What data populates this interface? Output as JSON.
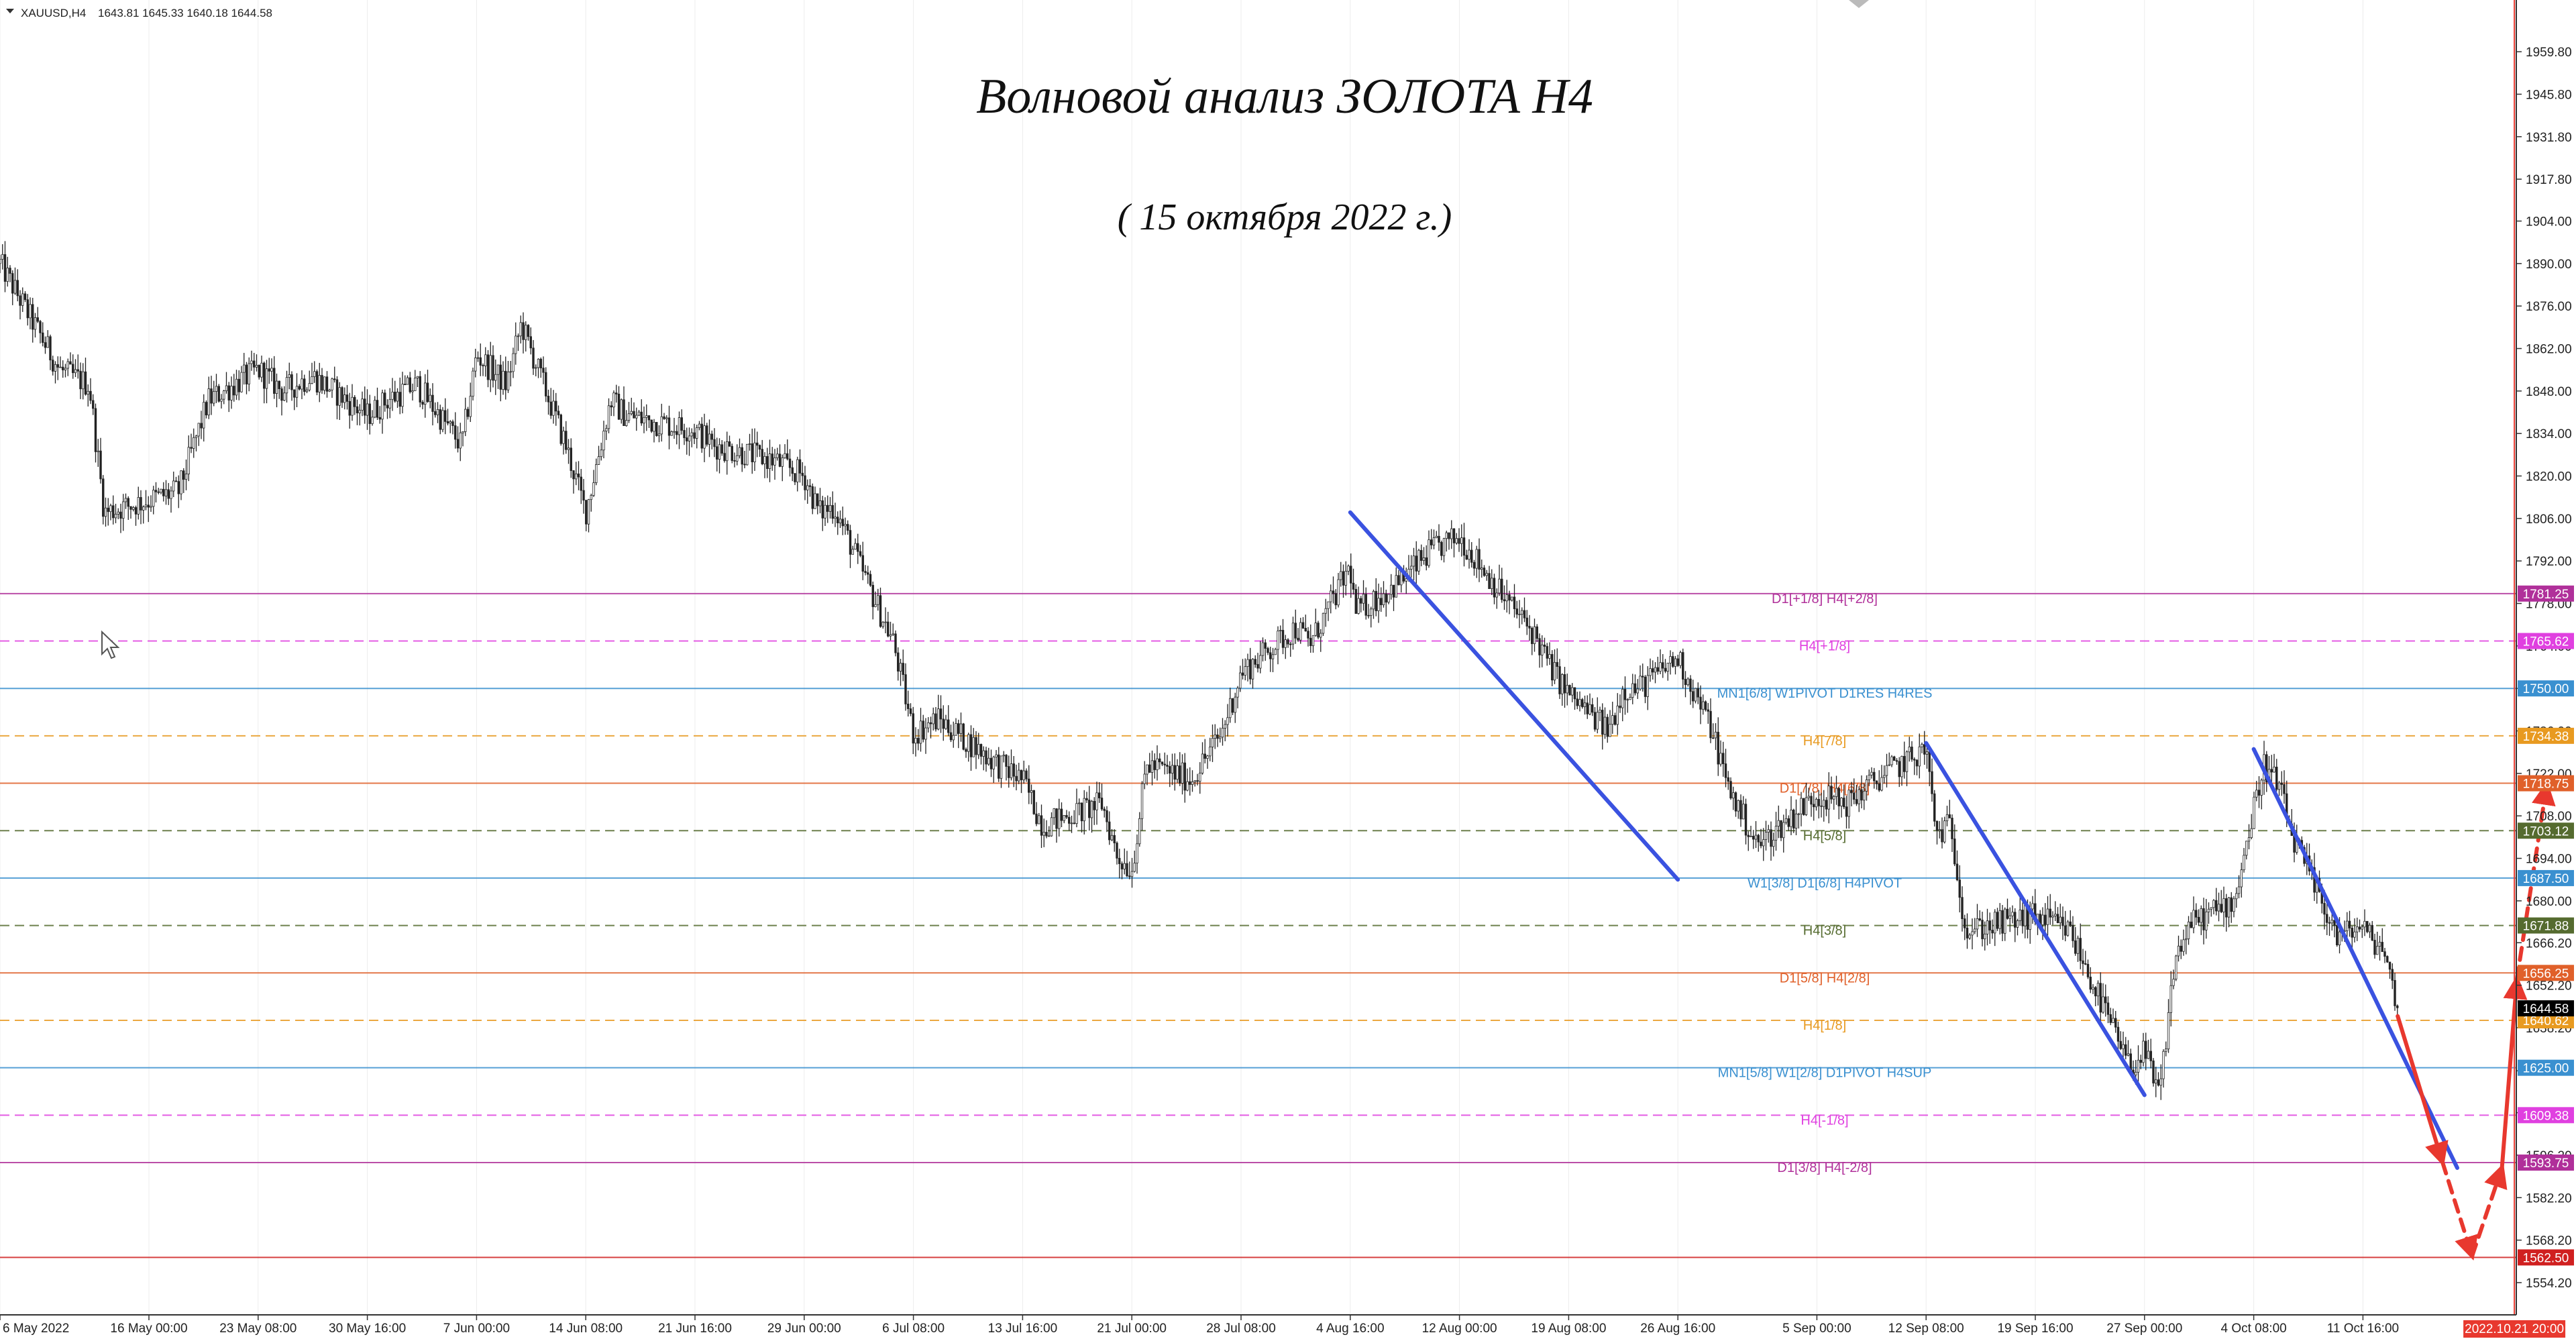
{
  "header": {
    "symbol": "XAUUSD,H4",
    "ohlc": "1643.81 1645.33 1640.18 1644.58"
  },
  "title": "Волновой анализ ЗОЛОТА H4",
  "subtitle": "( 15 октября 2022 г.)",
  "chart_data": {
    "type": "candlestick",
    "symbol": "XAUUSD",
    "timeframe": "H4",
    "ohlc_last": {
      "open": 1643.81,
      "high": 1645.33,
      "low": 1640.18,
      "close": 1644.58
    },
    "ylim": [
      1548,
      1968
    ],
    "y_ticks": [
      "1959.80",
      "1945.80",
      "1931.80",
      "1917.80",
      "1904.00",
      "1890.00",
      "1876.00",
      "1862.00",
      "1848.00",
      "1834.00",
      "1820.00",
      "1806.00",
      "1792.00",
      "1778.00",
      "1764.00",
      "1750.00",
      "1736.00",
      "1722.00",
      "1708.00",
      "1694.00",
      "1680.00",
      "1666.20",
      "1652.20",
      "1638.20",
      "1624.00",
      "1610.20",
      "1596.20",
      "1582.20",
      "1568.20",
      "1554.20"
    ],
    "x_ticks": [
      "6 May 2022",
      "16 May 00:00",
      "23 May 08:00",
      "30 May 16:00",
      "7 Jun 00:00",
      "14 Jun 08:00",
      "21 Jun 16:00",
      "29 Jun 00:00",
      "6 Jul 08:00",
      "13 Jul 16:00",
      "21 Jul 00:00",
      "28 Jul 08:00",
      "4 Aug 16:00",
      "12 Aug 00:00",
      "19 Aug 08:00",
      "26 Aug 16:00",
      "5 Sep 00:00",
      "12 Sep 08:00",
      "19 Sep 16:00",
      "27 Sep 00:00",
      "4 Oct 08:00",
      "11 Oct 16:00"
    ],
    "vertical_marker_label": "2022.10.21 20:00",
    "price_path": [
      [
        "6 May 2022",
        1890
      ],
      [
        "10 May",
        1855
      ],
      [
        "12 May",
        1850
      ],
      [
        "13 May",
        1808
      ],
      [
        "16 May 00:00",
        1812
      ],
      [
        "18 May",
        1815
      ],
      [
        "20 May",
        1845
      ],
      [
        "23 May 08:00",
        1855
      ],
      [
        "25 May",
        1848
      ],
      [
        "27 May",
        1853
      ],
      [
        "30 May 16:00",
        1840
      ],
      [
        "1 Jun",
        1845
      ],
      [
        "3 Jun",
        1850
      ],
      [
        "6 Jun",
        1830
      ],
      [
        "7 Jun 00:00",
        1860
      ],
      [
        "9 Jun",
        1850
      ],
      [
        "10 Jun",
        1870
      ],
      [
        "13 Jun",
        1830
      ],
      [
        "14 Jun 08:00",
        1808
      ],
      [
        "16 Jun",
        1845
      ],
      [
        "17 Jun",
        1840
      ],
      [
        "21 Jun 16:00",
        1835
      ],
      [
        "23 Jun",
        1830
      ],
      [
        "27 Jun",
        1825
      ],
      [
        "29 Jun 00:00",
        1820
      ],
      [
        "30 Jun",
        1808
      ],
      [
        "1 Jul",
        1810
      ],
      [
        "5 Jul",
        1765
      ],
      [
        "6 Jul 08:00",
        1735
      ],
      [
        "8 Jul",
        1740
      ],
      [
        "12 Jul",
        1725
      ],
      [
        "13 Jul 16:00",
        1720
      ],
      [
        "15 Jul",
        1705
      ],
      [
        "19 Jul",
        1712
      ],
      [
        "20 Jul",
        1695
      ],
      [
        "21 Jul 00:00",
        1690
      ],
      [
        "22 Jul",
        1725
      ],
      [
        "25 Jul",
        1720
      ],
      [
        "27 Jul",
        1735
      ],
      [
        "28 Jul 08:00",
        1755
      ],
      [
        "1 Aug",
        1770
      ],
      [
        "2 Aug",
        1765
      ],
      [
        "4 Aug 16:00",
        1790
      ],
      [
        "5 Aug",
        1775
      ],
      [
        "8 Aug",
        1785
      ],
      [
        "10 Aug",
        1795
      ],
      [
        "12 Aug 00:00",
        1800
      ],
      [
        "15 Aug",
        1780
      ],
      [
        "17 Aug",
        1768
      ],
      [
        "18 Aug",
        1758
      ],
      [
        "19 Aug 08:00",
        1748
      ],
      [
        "22 Aug",
        1736
      ],
      [
        "23 Aug",
        1750
      ],
      [
        "24 Aug",
        1750
      ],
      [
        "26 Aug 16:00",
        1760
      ],
      [
        "29 Aug",
        1736
      ],
      [
        "30 Aug",
        1718
      ],
      [
        "1 Sep",
        1698
      ],
      [
        "5 Sep 00:00",
        1715
      ],
      [
        "7 Sep",
        1712
      ],
      [
        "9 Sep",
        1720
      ],
      [
        "12 Sep 08:00",
        1730
      ],
      [
        "13 Sep",
        1702
      ],
      [
        "14 Sep",
        1705
      ],
      [
        "15 Sep",
        1670
      ],
      [
        "19 Sep 16:00",
        1675
      ],
      [
        "22 Sep",
        1670
      ],
      [
        "26 Sep",
        1625
      ],
      [
        "27 Sep 00:00",
        1630
      ],
      [
        "28 Sep",
        1615
      ],
      [
        "29 Sep",
        1660
      ],
      [
        "30 Sep",
        1672
      ],
      [
        "3 Oct",
        1680
      ],
      [
        "4 Oct 08:00",
        1710
      ],
      [
        "5 Oct",
        1725
      ],
      [
        "6 Oct",
        1718
      ],
      [
        "7 Oct",
        1700
      ],
      [
        "10 Oct",
        1668
      ],
      [
        "11 Oct 16:00",
        1672
      ],
      [
        "12 Oct",
        1668
      ],
      [
        "13 Oct",
        1665
      ],
      [
        "14 Oct",
        1644.58
      ]
    ],
    "levels": [
      {
        "price": 1781.25,
        "label": "D1[+1/8] H4[+2/8]",
        "color": "#b0309a",
        "style": "solid"
      },
      {
        "price": 1765.62,
        "label": "H4[+1/8]",
        "color": "#e040e0",
        "style": "dashed"
      },
      {
        "price": 1750.0,
        "label": "MN1[6/8] W1PIVOT D1RES H4RES",
        "color": "#3a90d0",
        "style": "solid"
      },
      {
        "price": 1734.38,
        "label": "H4[7/8]",
        "color": "#e89a20",
        "style": "dashed"
      },
      {
        "price": 1718.75,
        "label": "D1[7/8] H4[6/8]",
        "color": "#e0602a",
        "style": "solid"
      },
      {
        "price": 1703.12,
        "label": "H4[5/8]",
        "color": "#556b2f",
        "style": "dashed"
      },
      {
        "price": 1687.5,
        "label": "W1[3/8] D1[6/8] H4PIVOT",
        "color": "#3a90d0",
        "style": "solid"
      },
      {
        "price": 1671.88,
        "label": "H4[3/8]",
        "color": "#556b2f",
        "style": "dashed"
      },
      {
        "price": 1656.25,
        "label": "D1[5/8] H4[2/8]",
        "color": "#e0602a",
        "style": "solid"
      },
      {
        "price": 1640.62,
        "label": "H4[1/8]",
        "color": "#e89a20",
        "style": "dashed"
      },
      {
        "price": 1625.0,
        "label": "MN1[5/8] W1[2/8] D1PIVOT H4SUP",
        "color": "#3a90d0",
        "style": "solid"
      },
      {
        "price": 1609.38,
        "label": "H4[-1/8]",
        "color": "#e040e0",
        "style": "dashed"
      },
      {
        "price": 1593.75,
        "label": "D1[3/8] H4[-2/8]",
        "color": "#b0309a",
        "style": "solid"
      },
      {
        "price": 1562.5,
        "label": "",
        "color": "#d02020",
        "style": "solid"
      }
    ],
    "current_price": 1644.58,
    "wave_lines": [
      {
        "from": [
          "4 Aug 16:00",
          1808
        ],
        "to": [
          "26 Aug 16:00",
          1687
        ]
      },
      {
        "from": [
          "12 Sep 08:00",
          1732
        ],
        "to": [
          "27 Sep 00:00",
          1616
        ]
      },
      {
        "from": [
          "4 Oct 08:00",
          1730
        ],
        "to": [
          "18 Oct",
          1592
        ]
      }
    ],
    "forecast": [
      {
        "style": "solid",
        "from": [
          "14 Oct",
          1642
        ],
        "to": [
          "17 Oct",
          1594
        ]
      },
      {
        "style": "dashed",
        "from": [
          "17 Oct",
          1594
        ],
        "to": [
          "19 Oct",
          1563
        ]
      },
      {
        "style": "dashed",
        "from": [
          "19 Oct",
          1563
        ],
        "to": [
          "21 Oct",
          1592
        ]
      },
      {
        "style": "solid",
        "from": [
          "21 Oct",
          1592
        ],
        "to": [
          "22 Oct",
          1654
        ]
      },
      {
        "style": "dashed",
        "from": [
          "22 Oct",
          1654
        ],
        "to": [
          "24 Oct",
          1718
        ]
      }
    ]
  }
}
